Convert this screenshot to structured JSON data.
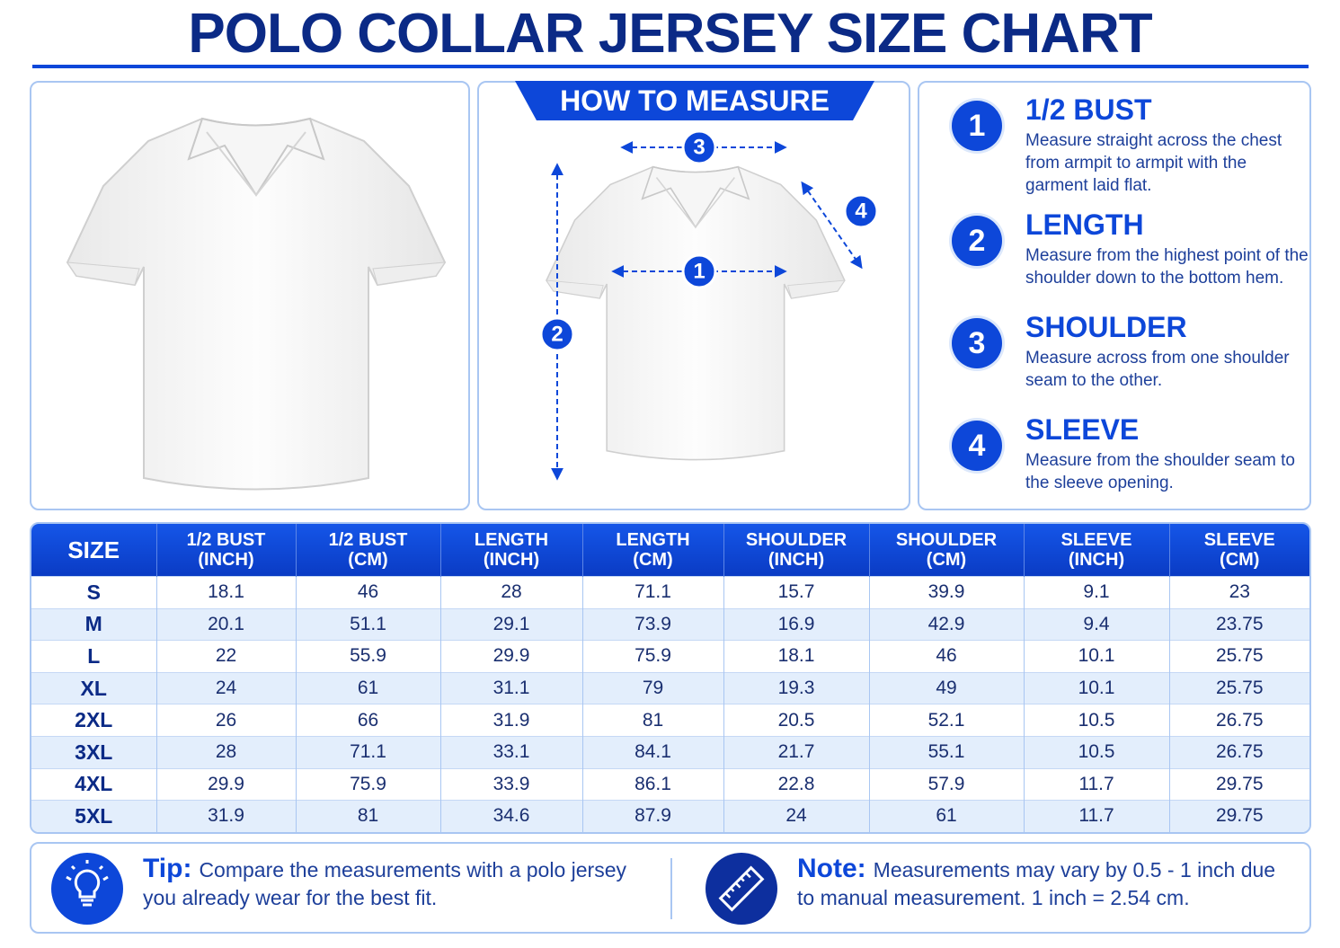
{
  "header": {
    "title": "POLO COLLAR JERSEY SIZE CHART"
  },
  "how_to_measure": {
    "heading": "HOW TO MEASURE",
    "markers": [
      "1",
      "2",
      "3",
      "4"
    ]
  },
  "instructions": [
    {
      "number": "1",
      "title": "1/2 BUST",
      "text": "Measure straight across the chest from armpit to armpit with the garment laid flat."
    },
    {
      "number": "2",
      "title": "LENGTH",
      "text": "Measure from the highest point of the shoulder down to the bottom hem."
    },
    {
      "number": "3",
      "title": "SHOULDER",
      "text": "Measure across from one shoulder seam to the other."
    },
    {
      "number": "4",
      "title": "SLEEVE",
      "text": "Measure from the shoulder seam to the sleeve opening."
    }
  ],
  "table": {
    "headers": [
      {
        "name": "SIZE"
      },
      {
        "name": "1/2 BUST",
        "unit": "(INCH)"
      },
      {
        "name": "1/2 BUST",
        "unit": "(CM)"
      },
      {
        "name": "LENGTH",
        "unit": "(INCH)"
      },
      {
        "name": "LENGTH",
        "unit": "(CM)"
      },
      {
        "name": "SHOULDER",
        "unit": "(INCH)"
      },
      {
        "name": "SHOULDER",
        "unit": "(CM)"
      },
      {
        "name": "SLEEVE",
        "unit": "(INCH)"
      },
      {
        "name": "SLEEVE",
        "unit": "(CM)"
      }
    ],
    "rows": [
      [
        "S",
        "18.1",
        "46",
        "28",
        "71.1",
        "15.7",
        "39.9",
        "9.1",
        "23"
      ],
      [
        "M",
        "20.1",
        "51.1",
        "29.1",
        "73.9",
        "16.9",
        "42.9",
        "9.4",
        "23.75"
      ],
      [
        "L",
        "22",
        "55.9",
        "29.9",
        "75.9",
        "18.1",
        "46",
        "10.1",
        "25.75"
      ],
      [
        "XL",
        "24",
        "61",
        "31.1",
        "79",
        "19.3",
        "49",
        "10.1",
        "25.75"
      ],
      [
        "2XL",
        "26",
        "66",
        "31.9",
        "81",
        "20.5",
        "52.1",
        "10.5",
        "26.75"
      ],
      [
        "3XL",
        "28",
        "71.1",
        "33.1",
        "84.1",
        "21.7",
        "55.1",
        "10.5",
        "26.75"
      ],
      [
        "4XL",
        "29.9",
        "75.9",
        "33.9",
        "86.1",
        "22.8",
        "57.9",
        "11.7",
        "29.75"
      ],
      [
        "5XL",
        "31.9",
        "81",
        "34.6",
        "87.9",
        "24",
        "61",
        "11.7",
        "29.75"
      ]
    ]
  },
  "footer": {
    "tip": {
      "label": "Tip:",
      "text": "Compare the measurements with a polo jersey you already wear for the best fit."
    },
    "note": {
      "label": "Note:",
      "text": "Measurements may vary by 0.5 - 1 inch due to manual measurement.  1 inch = 2.54 cm."
    }
  }
}
